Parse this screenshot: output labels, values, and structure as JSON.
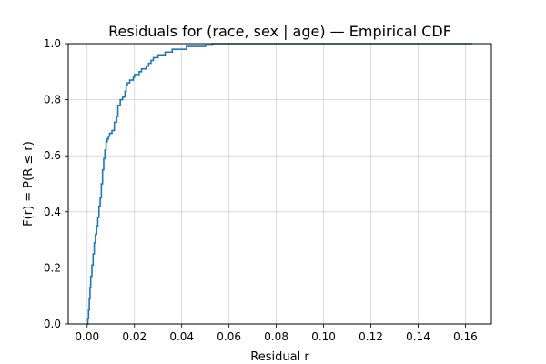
{
  "chart_data": {
    "type": "line",
    "title": "Residuals for (race, sex | age) — Empirical CDF",
    "xlabel": "Residual r",
    "ylabel": "F(r) = P(R ≤ r)",
    "xlim": [
      -0.008,
      0.171
    ],
    "ylim": [
      0.0,
      1.0
    ],
    "xticks": [
      0.0,
      0.02,
      0.04,
      0.06,
      0.08,
      0.1,
      0.12,
      0.14,
      0.16
    ],
    "xtick_labels": [
      "0.00",
      "0.02",
      "0.04",
      "0.06",
      "0.08",
      "0.10",
      "0.12",
      "0.14",
      "0.16"
    ],
    "yticks": [
      0.0,
      0.2,
      0.4,
      0.6,
      0.8,
      1.0
    ],
    "ytick_labels": [
      "0.0",
      "0.2",
      "0.4",
      "0.6",
      "0.8",
      "1.0"
    ],
    "grid": true,
    "step": true,
    "line_color": "#1f77b4",
    "series": [
      {
        "x": [
          0.0,
          0.0003,
          0.0006,
          0.0009,
          0.0012,
          0.0015,
          0.002,
          0.0025,
          0.003,
          0.0035,
          0.004,
          0.0045,
          0.005,
          0.0055,
          0.006,
          0.0065,
          0.007,
          0.0075,
          0.008,
          0.0085,
          0.009,
          0.0095,
          0.0105,
          0.0115,
          0.0125,
          0.013,
          0.014,
          0.015,
          0.016,
          0.0165,
          0.017,
          0.0175,
          0.018,
          0.019,
          0.0195,
          0.02,
          0.021,
          0.022,
          0.023,
          0.024,
          0.025,
          0.026,
          0.027,
          0.028,
          0.029,
          0.03,
          0.031,
          0.033,
          0.035,
          0.036,
          0.038,
          0.04,
          0.042,
          0.045,
          0.048,
          0.05,
          0.052,
          0.053,
          0.055,
          0.06,
          0.07,
          0.08,
          0.1,
          0.12,
          0.14,
          0.163
        ],
        "y": [
          0.0,
          0.02,
          0.05,
          0.09,
          0.13,
          0.17,
          0.21,
          0.25,
          0.29,
          0.32,
          0.35,
          0.38,
          0.42,
          0.45,
          0.5,
          0.55,
          0.59,
          0.62,
          0.65,
          0.66,
          0.67,
          0.68,
          0.69,
          0.72,
          0.74,
          0.78,
          0.8,
          0.81,
          0.83,
          0.85,
          0.86,
          0.86,
          0.87,
          0.87,
          0.88,
          0.89,
          0.89,
          0.9,
          0.91,
          0.91,
          0.92,
          0.93,
          0.94,
          0.95,
          0.95,
          0.96,
          0.96,
          0.97,
          0.97,
          0.98,
          0.98,
          0.98,
          0.99,
          0.99,
          0.99,
          0.995,
          0.995,
          1.0,
          1.0,
          1.0,
          1.0,
          1.0,
          1.0,
          1.0,
          1.0,
          1.0
        ]
      }
    ]
  }
}
